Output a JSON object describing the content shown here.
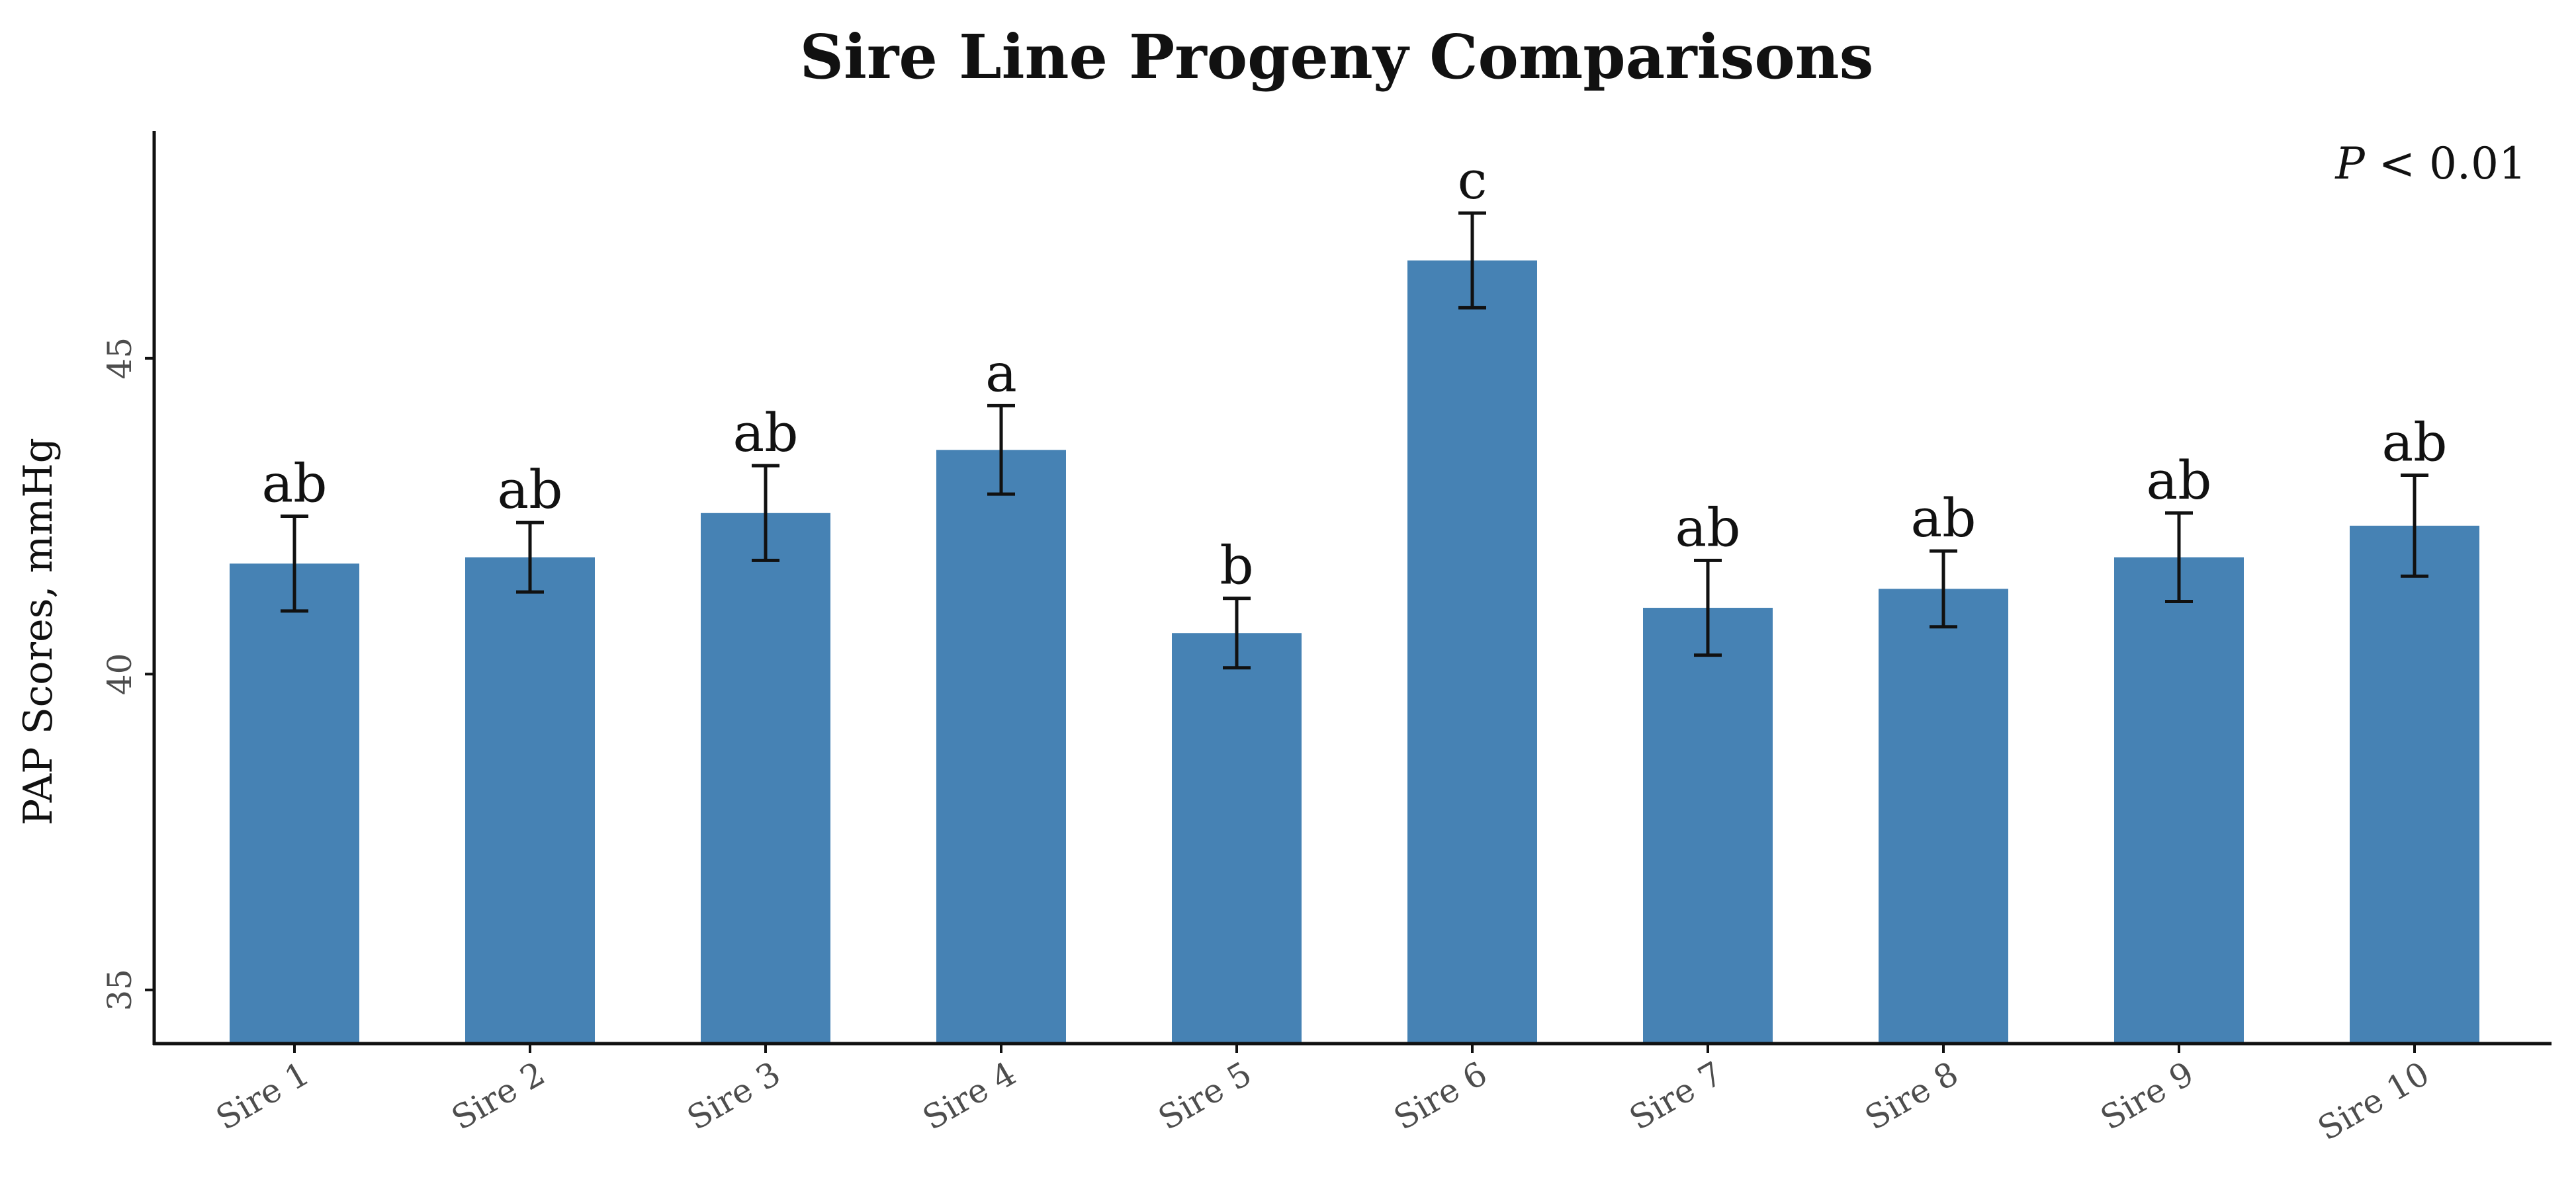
{
  "chart_data": {
    "type": "bar",
    "title": "Sire Line Progeny Comparisons",
    "xlabel": "",
    "ylabel": "PAP Scores, mmHg",
    "categories": [
      "Sire 1",
      "Sire 2",
      "Sire 3",
      "Sire 4",
      "Sire 5",
      "Sire 6",
      "Sire 7",
      "Sire 8",
      "Sire 9",
      "Sire 10"
    ],
    "values": [
      41.75,
      41.85,
      42.55,
      43.55,
      40.65,
      46.55,
      41.05,
      41.35,
      41.85,
      42.35
    ],
    "error": [
      0.75,
      0.55,
      0.75,
      0.7,
      0.55,
      0.75,
      0.75,
      0.6,
      0.7,
      0.8
    ],
    "letters": [
      "ab",
      "ab",
      "ab",
      "a",
      "b",
      "c",
      "ab",
      "ab",
      "ab",
      "ab"
    ],
    "annotation": {
      "italic": "P",
      "rest": " < 0.01"
    },
    "yticks": [
      35,
      40,
      45
    ],
    "ylim": [
      34.15,
      48.6
    ],
    "bar_color": "#4682b4",
    "grid": false,
    "legend": "none"
  }
}
